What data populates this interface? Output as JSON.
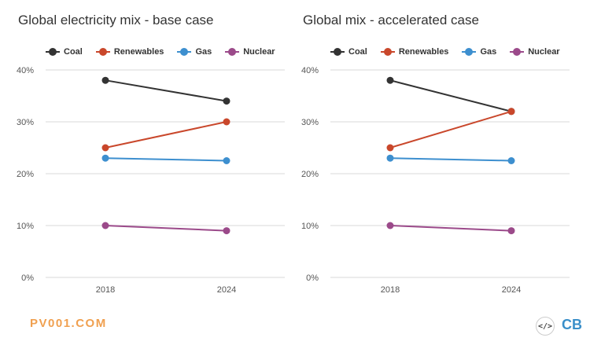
{
  "chart_data": [
    {
      "type": "line",
      "title": "Global electricity mix - base case",
      "x": [
        "2018",
        "2024"
      ],
      "ylim": [
        0,
        40
      ],
      "yticks": [
        "0%",
        "10%",
        "20%",
        "30%",
        "40%"
      ],
      "grid": true,
      "legend_position": "top-left",
      "series": [
        {
          "name": "Coal",
          "color": "#333333",
          "values": [
            38,
            34
          ]
        },
        {
          "name": "Renewables",
          "color": "#c9472b",
          "values": [
            25,
            30
          ]
        },
        {
          "name": "Gas",
          "color": "#3d8fcf",
          "values": [
            23,
            22.5
          ]
        },
        {
          "name": "Nuclear",
          "color": "#9b4a8a",
          "values": [
            10,
            9
          ]
        }
      ]
    },
    {
      "type": "line",
      "title": "Global mix - accelerated case",
      "x": [
        "2018",
        "2024"
      ],
      "ylim": [
        0,
        40
      ],
      "yticks": [
        "0%",
        "10%",
        "20%",
        "30%",
        "40%"
      ],
      "grid": true,
      "legend_position": "top-left",
      "series": [
        {
          "name": "Coal",
          "color": "#333333",
          "values": [
            38,
            32
          ]
        },
        {
          "name": "Renewables",
          "color": "#c9472b",
          "values": [
            25,
            32
          ]
        },
        {
          "name": "Gas",
          "color": "#3d8fcf",
          "values": [
            23,
            22.5
          ]
        },
        {
          "name": "Nuclear",
          "color": "#9b4a8a",
          "values": [
            10,
            9
          ]
        }
      ]
    }
  ],
  "footer": {
    "brand": "PV001.COM",
    "embed_icon": "</>",
    "logo": "CB"
  }
}
